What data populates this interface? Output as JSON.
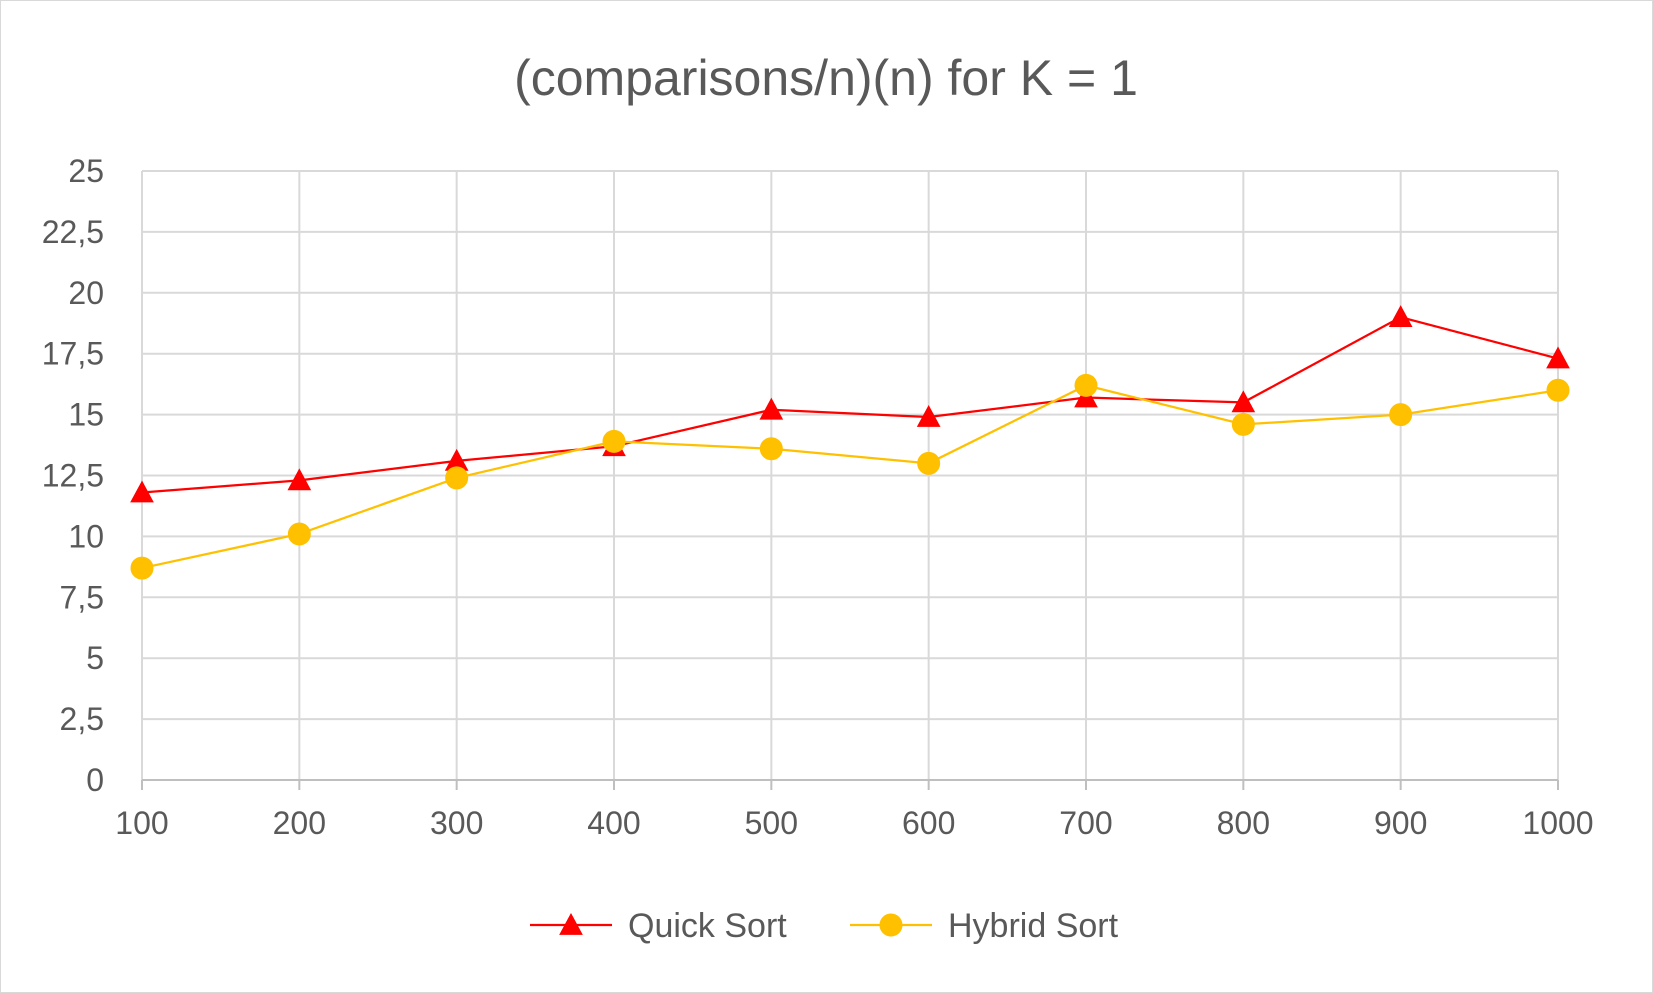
{
  "chart_data": {
    "type": "line",
    "title": "(comparisons/n)(n) for K = 1",
    "xlabel": "",
    "ylabel": "",
    "x": [
      100,
      200,
      300,
      400,
      500,
      600,
      700,
      800,
      900,
      1000
    ],
    "x_tick_labels": [
      "100",
      "200",
      "300",
      "400",
      "500",
      "600",
      "700",
      "800",
      "900",
      "1000"
    ],
    "ylim": [
      0,
      25
    ],
    "y_ticks": [
      0,
      2.5,
      5,
      7.5,
      10,
      12.5,
      15,
      17.5,
      20,
      22.5,
      25
    ],
    "y_tick_labels": [
      "0",
      "2,5",
      "5",
      "7,5",
      "10",
      "12,5",
      "15",
      "17,5",
      "20",
      "22,5",
      "25"
    ],
    "grid": true,
    "legend_position": "bottom",
    "series": [
      {
        "name": "Quick Sort",
        "color": "#ff0000",
        "marker": "triangle",
        "values": [
          11.8,
          12.3,
          13.1,
          13.7,
          15.2,
          14.9,
          15.7,
          15.5,
          19.0,
          17.3
        ]
      },
      {
        "name": "Hybrid Sort",
        "color": "#ffc000",
        "marker": "circle",
        "values": [
          8.7,
          10.1,
          12.4,
          13.9,
          13.6,
          13.0,
          16.2,
          14.6,
          15.0,
          16.0
        ]
      }
    ]
  }
}
